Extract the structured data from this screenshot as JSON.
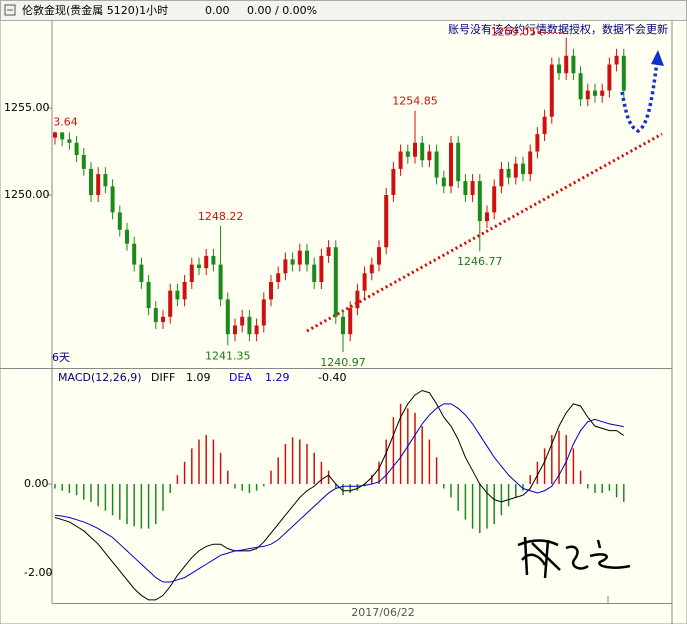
{
  "header": {
    "symbol": "伦敦金现(贵金属 5120)1小时",
    "last": "0.00",
    "change": "0.00 / 0.00%"
  },
  "chart_data": [
    {
      "type": "candlestick",
      "note": "账号没有该合约行情数据授权，数据不会更新",
      "period_label": "6天",
      "up_color": "#d01010",
      "down_color": "#1a8a1a",
      "ylim": [
        1240,
        1260
      ],
      "yticks": [
        {
          "value": 1255,
          "label": "1255.00"
        },
        {
          "value": 1250,
          "label": "1250.00"
        }
      ],
      "open": [
        1253.3,
        1253.6,
        1253.2,
        1253.0,
        1252.3,
        1251.5,
        1250.0,
        1251.2,
        1250.5,
        1249.0,
        1248.0,
        1247.2,
        1246.0,
        1245.0,
        1243.5,
        1242.7,
        1243.0,
        1244.5,
        1244.0,
        1245.0,
        1246.0,
        1245.8,
        1246.5,
        1246.0,
        1244.0,
        1242.0,
        1242.5,
        1243.0,
        1242.0,
        1242.5,
        1244.0,
        1245.0,
        1245.5,
        1246.3,
        1246.0,
        1246.8,
        1246.0,
        1245.0,
        1246.5,
        1247.0,
        1243.0,
        1242.0,
        1243.5,
        1244.5,
        1245.5,
        1246.0,
        1247.0,
        1250.0,
        1251.5,
        1252.5,
        1252.2,
        1253.0,
        1252.0,
        1252.5,
        1251.0,
        1250.5,
        1253.0,
        1250.8,
        1250.0,
        1250.8,
        1248.5,
        1249.0,
        1250.5,
        1251.5,
        1251.0,
        1251.8,
        1251.2,
        1252.5,
        1253.5,
        1254.5,
        1257.5,
        1257.0,
        1258.0,
        1257.0,
        1255.5,
        1256.0,
        1255.7,
        1256.0,
        1257.5,
        1258.0
      ],
      "high": [
        1253.64,
        1253.6,
        1253.6,
        1253.4,
        1252.7,
        1251.9,
        1251.6,
        1251.6,
        1250.9,
        1249.4,
        1248.4,
        1247.6,
        1246.4,
        1245.4,
        1243.9,
        1243.4,
        1244.9,
        1244.9,
        1245.4,
        1246.4,
        1246.4,
        1246.9,
        1246.9,
        1248.22,
        1244.4,
        1242.9,
        1243.4,
        1243.4,
        1242.9,
        1244.4,
        1245.4,
        1245.9,
        1246.7,
        1246.7,
        1247.2,
        1247.2,
        1246.4,
        1246.9,
        1247.4,
        1247.4,
        1243.4,
        1243.9,
        1244.9,
        1245.9,
        1246.4,
        1247.4,
        1250.4,
        1251.9,
        1252.9,
        1252.9,
        1254.85,
        1253.4,
        1252.9,
        1252.9,
        1251.4,
        1253.4,
        1253.4,
        1251.2,
        1251.2,
        1251.2,
        1249.4,
        1250.9,
        1251.9,
        1251.9,
        1252.2,
        1252.2,
        1252.9,
        1253.9,
        1254.9,
        1257.9,
        1257.9,
        1259.05,
        1258.4,
        1257.4,
        1256.4,
        1256.4,
        1256.4,
        1257.9,
        1258.4,
        1258.4
      ],
      "low": [
        1252.9,
        1252.8,
        1252.6,
        1251.9,
        1251.1,
        1249.6,
        1249.6,
        1250.1,
        1248.6,
        1247.6,
        1246.8,
        1245.6,
        1244.6,
        1243.1,
        1242.3,
        1242.3,
        1242.6,
        1243.6,
        1243.6,
        1244.6,
        1245.4,
        1245.4,
        1245.6,
        1243.6,
        1241.35,
        1241.6,
        1242.1,
        1241.6,
        1241.6,
        1242.1,
        1243.6,
        1244.6,
        1245.1,
        1245.6,
        1245.6,
        1245.6,
        1244.6,
        1244.6,
        1246.1,
        1242.6,
        1240.97,
        1241.6,
        1243.1,
        1244.1,
        1245.1,
        1245.6,
        1246.6,
        1249.6,
        1251.1,
        1251.8,
        1251.8,
        1251.6,
        1251.6,
        1250.6,
        1250.1,
        1250.1,
        1250.4,
        1249.6,
        1249.6,
        1246.77,
        1248.1,
        1248.6,
        1250.1,
        1250.6,
        1250.6,
        1250.8,
        1250.8,
        1252.1,
        1253.1,
        1254.1,
        1256.6,
        1256.6,
        1256.6,
        1255.1,
        1255.1,
        1255.3,
        1255.3,
        1255.6,
        1257.1,
        1255.6
      ],
      "close": [
        1253.6,
        1253.2,
        1253.0,
        1252.3,
        1251.5,
        1250.0,
        1251.2,
        1250.5,
        1249.0,
        1248.0,
        1247.2,
        1246.0,
        1245.0,
        1243.5,
        1242.7,
        1243.0,
        1244.5,
        1244.0,
        1245.0,
        1246.0,
        1245.8,
        1246.5,
        1246.0,
        1244.0,
        1242.0,
        1242.5,
        1243.0,
        1242.0,
        1242.5,
        1244.0,
        1245.0,
        1245.5,
        1246.3,
        1246.0,
        1246.8,
        1246.0,
        1245.0,
        1246.5,
        1247.0,
        1243.0,
        1242.0,
        1243.5,
        1244.5,
        1245.5,
        1246.0,
        1247.0,
        1250.0,
        1251.5,
        1252.5,
        1252.2,
        1253.0,
        1252.0,
        1252.5,
        1251.0,
        1250.5,
        1253.0,
        1250.8,
        1250.0,
        1250.8,
        1248.5,
        1249.0,
        1250.5,
        1251.5,
        1251.0,
        1251.8,
        1251.2,
        1252.5,
        1253.5,
        1254.5,
        1257.5,
        1257.0,
        1258.0,
        1257.0,
        1255.5,
        1256.0,
        1255.7,
        1256.0,
        1257.5,
        1258.0,
        1256.0
      ]
    },
    {
      "type": "macd",
      "title": "MACD(12,26,9)",
      "x_tick_label": "2017/06/22",
      "ylim": [
        -2.67,
        2.56
      ],
      "yticks": [
        {
          "value": 0,
          "label": "0.00"
        },
        {
          "value": -2,
          "label": "-2.00"
        }
      ],
      "series": [
        {
          "name": "DIFF",
          "color": "#000000",
          "values": [
            -0.75,
            -0.8,
            -0.85,
            -0.95,
            -1.05,
            -1.2,
            -1.35,
            -1.55,
            -1.75,
            -1.95,
            -2.15,
            -2.35,
            -2.5,
            -2.6,
            -2.6,
            -2.5,
            -2.3,
            -2.05,
            -1.85,
            -1.65,
            -1.5,
            -1.4,
            -1.35,
            -1.35,
            -1.45,
            -1.5,
            -1.5,
            -1.5,
            -1.45,
            -1.3,
            -1.1,
            -0.9,
            -0.7,
            -0.5,
            -0.3,
            -0.15,
            -0.05,
            0.1,
            0.2,
            0.0,
            -0.15,
            -0.15,
            -0.1,
            0.0,
            0.15,
            0.35,
            0.7,
            1.1,
            1.5,
            1.8,
            2.0,
            2.1,
            2.05,
            1.8,
            1.5,
            1.3,
            1.0,
            0.6,
            0.3,
            0.0,
            -0.2,
            -0.35,
            -0.4,
            -0.35,
            -0.3,
            -0.25,
            -0.1,
            0.2,
            0.5,
            0.9,
            1.3,
            1.6,
            1.8,
            1.75,
            1.5,
            1.3,
            1.25,
            1.2,
            1.2,
            1.09
          ]
        },
        {
          "name": "DEA",
          "color": "#0000c8",
          "values": [
            -0.7,
            -0.72,
            -0.75,
            -0.8,
            -0.85,
            -0.92,
            -1.0,
            -1.1,
            -1.2,
            -1.35,
            -1.5,
            -1.65,
            -1.8,
            -1.95,
            -2.1,
            -2.2,
            -2.2,
            -2.15,
            -2.1,
            -2.0,
            -1.9,
            -1.8,
            -1.7,
            -1.6,
            -1.55,
            -1.5,
            -1.48,
            -1.45,
            -1.42,
            -1.4,
            -1.35,
            -1.25,
            -1.1,
            -0.95,
            -0.8,
            -0.65,
            -0.5,
            -0.35,
            -0.2,
            -0.1,
            -0.05,
            -0.05,
            -0.05,
            -0.03,
            0.0,
            0.05,
            0.2,
            0.4,
            0.6,
            0.85,
            1.1,
            1.35,
            1.55,
            1.7,
            1.8,
            1.8,
            1.7,
            1.55,
            1.35,
            1.1,
            0.85,
            0.6,
            0.4,
            0.2,
            0.05,
            -0.1,
            -0.15,
            -0.2,
            -0.15,
            -0.05,
            0.2,
            0.5,
            0.9,
            1.2,
            1.4,
            1.45,
            1.4,
            1.35,
            1.32,
            1.29
          ]
        }
      ],
      "histogram": {
        "up_color": "#d01010",
        "down_color": "#1a8a1a",
        "latest_label": "-0.40",
        "values": [
          -0.1,
          -0.15,
          -0.2,
          -0.25,
          -0.35,
          -0.4,
          -0.5,
          -0.6,
          -0.7,
          -0.8,
          -0.9,
          -0.95,
          -1.0,
          -1.0,
          -0.9,
          -0.6,
          -0.2,
          0.2,
          0.5,
          0.8,
          1.0,
          1.1,
          1.0,
          0.7,
          0.3,
          -0.1,
          -0.15,
          -0.2,
          -0.15,
          -0.05,
          0.3,
          0.6,
          0.9,
          1.05,
          1.0,
          0.9,
          0.7,
          0.5,
          0.3,
          -0.1,
          -0.25,
          -0.2,
          -0.15,
          -0.05,
          0.2,
          0.5,
          1.0,
          1.5,
          1.8,
          1.7,
          1.6,
          1.3,
          1.0,
          0.6,
          -0.1,
          -0.3,
          -0.6,
          -0.8,
          -1.0,
          -1.1,
          -1.0,
          -0.9,
          -0.7,
          -0.5,
          -0.3,
          -0.15,
          0.2,
          0.5,
          0.8,
          1.1,
          1.2,
          1.1,
          0.8,
          0.3,
          -0.1,
          -0.2,
          -0.2,
          -0.15,
          -0.3,
          -0.4
        ]
      }
    }
  ]
}
